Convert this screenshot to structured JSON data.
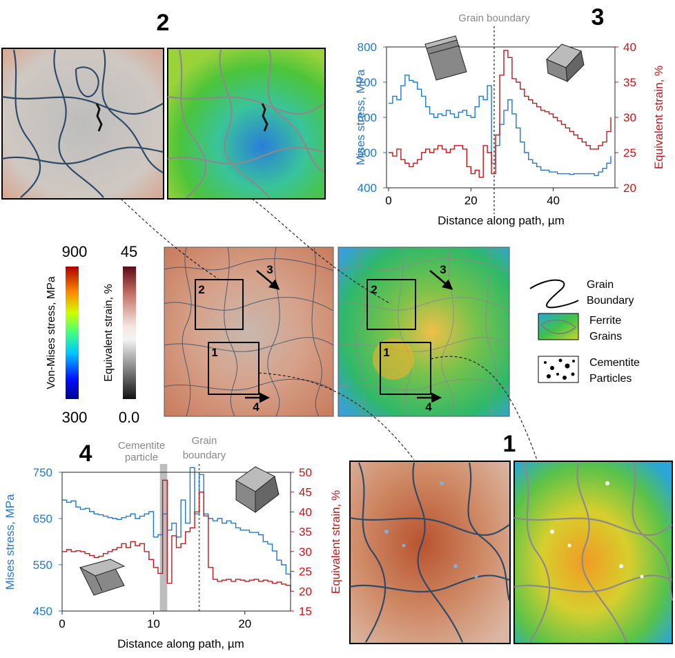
{
  "labels": {
    "panel2": "2",
    "panel3": "3",
    "panel4": "4",
    "panel1": "1",
    "arrow3": "3",
    "arrow4": "4",
    "box1": "1",
    "box2": "2"
  },
  "colorbars": {
    "stress": {
      "label": "Von-Mises stress, MPa",
      "max": "900",
      "min": "300"
    },
    "strain": {
      "label": "Equivalent strain, %",
      "max": "45",
      "min": "0.0"
    }
  },
  "legend": {
    "grain_boundary_line1": "Grain",
    "grain_boundary_line2": "Boundary",
    "ferrite_line1": "Ferrite",
    "ferrite_line2": "Grains",
    "cementite_line1": "Cementite",
    "cementite_line2": "Particles"
  },
  "colors": {
    "stress_axis": "#1f78c8",
    "strain_axis": "#c0161b",
    "annotation_gray": "#888888"
  },
  "chart_data": [
    {
      "id": "3",
      "type": "line",
      "annotation": "Grain boundary",
      "boundary_x": 25.5,
      "xlabel": "Distance along path, µm",
      "ylabel_left": "Mises stress, MPa",
      "ylabel_right": "Equivalent strain, %",
      "xlim": [
        -0.5,
        55
      ],
      "ylim_left": [
        400,
        800
      ],
      "ylim_right": [
        20,
        40
      ],
      "xticks": [
        0,
        20,
        40
      ],
      "yticks_left": [
        400,
        500,
        600,
        700,
        800
      ],
      "yticks_right": [
        20,
        25,
        30,
        35,
        40
      ],
      "series": [
        {
          "axis": "left",
          "x": [
            0,
            1,
            2,
            3,
            4,
            5,
            6,
            7,
            8,
            9,
            10,
            11,
            12,
            13,
            14,
            15,
            16,
            17,
            18,
            19,
            20,
            21,
            22,
            23,
            24,
            25,
            26,
            27,
            28,
            29,
            30,
            31,
            32,
            33,
            34,
            35,
            36,
            37,
            38,
            39,
            40,
            41,
            42,
            43,
            44,
            45,
            46,
            47,
            48,
            49,
            50,
            51,
            52,
            53,
            54
          ],
          "y": [
            640,
            660,
            650,
            690,
            720,
            705,
            700,
            680,
            660,
            630,
            610,
            600,
            610,
            605,
            620,
            610,
            600,
            615,
            620,
            605,
            600,
            630,
            660,
            650,
            690,
            470,
            520,
            580,
            620,
            650,
            610,
            570,
            530,
            500,
            480,
            470,
            460,
            450,
            450,
            445,
            445,
            440,
            440,
            440,
            438,
            440,
            440,
            440,
            440,
            440,
            435,
            445,
            455,
            470,
            490
          ]
        },
        {
          "axis": "right",
          "x": [
            0,
            1,
            2,
            3,
            4,
            5,
            6,
            7,
            8,
            9,
            10,
            11,
            12,
            13,
            14,
            15,
            16,
            17,
            18,
            19,
            20,
            21,
            22,
            23,
            24,
            25,
            26,
            27,
            28,
            29,
            30,
            31,
            32,
            33,
            34,
            35,
            36,
            37,
            38,
            39,
            40,
            41,
            42,
            43,
            44,
            45,
            46,
            47,
            48,
            49,
            50,
            51,
            52,
            53,
            54
          ],
          "y": [
            25,
            24.5,
            25.5,
            24,
            23.5,
            23,
            23.5,
            24,
            25,
            25.5,
            25,
            25.5,
            26,
            25.5,
            25,
            25.5,
            26,
            26,
            25.5,
            23,
            22,
            22.5,
            21.5,
            26,
            25,
            22,
            27.5,
            36,
            39.5,
            38.5,
            35.5,
            35,
            34,
            33,
            32.5,
            32,
            31.5,
            31,
            30.8,
            30.5,
            30,
            29.5,
            29,
            28.5,
            28,
            27.5,
            27,
            26.5,
            26,
            25.5,
            25.5,
            26,
            26.5,
            28,
            30
          ]
        }
      ]
    },
    {
      "id": "4",
      "type": "line",
      "annotation_particle": "Cementite particle",
      "annotation_boundary": "Grain boundary",
      "particle_range": [
        10.7,
        11.5
      ],
      "boundary_x": 15,
      "xlabel": "Distance along path, µm",
      "ylabel_left": "Mises stress, MPa",
      "ylabel_right": "Equivalent strain, %",
      "xlim": [
        0,
        25
      ],
      "ylim_left": [
        450,
        750
      ],
      "ylim_right": [
        15,
        50
      ],
      "xticks": [
        0,
        10,
        20
      ],
      "yticks_left": [
        450,
        550,
        650,
        750
      ],
      "yticks_right": [
        15,
        20,
        25,
        30,
        35,
        40,
        45,
        50
      ],
      "series": [
        {
          "axis": "left",
          "x": [
            0,
            0.5,
            1,
            1.5,
            2,
            2.5,
            3,
            3.5,
            4,
            4.5,
            5,
            5.5,
            6,
            6.5,
            7,
            7.5,
            8,
            8.5,
            9,
            9.5,
            10,
            10.5,
            11,
            11.5,
            12,
            12.5,
            13,
            13.5,
            14,
            14.5,
            15,
            15.5,
            16,
            16.5,
            17,
            17.5,
            18,
            18.5,
            19,
            19.5,
            20,
            20.5,
            21,
            21.5,
            22,
            22.5,
            23,
            23.5,
            24,
            24.5,
            25
          ],
          "y": [
            690,
            685,
            688,
            675,
            670,
            672,
            665,
            660,
            658,
            655,
            652,
            650,
            648,
            652,
            655,
            660,
            650,
            655,
            660,
            665,
            610,
            615,
            660,
            625,
            640,
            610,
            690,
            640,
            760,
            660,
            745,
            660,
            650,
            645,
            650,
            640,
            645,
            640,
            630,
            625,
            625,
            620,
            620,
            615,
            600,
            595,
            580,
            560,
            550,
            530,
            520
          ]
        },
        {
          "axis": "right",
          "x": [
            0,
            0.5,
            1,
            1.5,
            2,
            2.5,
            3,
            3.5,
            4,
            4.5,
            5,
            5.5,
            6,
            6.5,
            7,
            7.5,
            8,
            8.5,
            9,
            9.5,
            10,
            10.5,
            11,
            11.5,
            12,
            12.5,
            13,
            13.5,
            14,
            14.5,
            15,
            15.5,
            16,
            16.5,
            17,
            17.5,
            18,
            18.5,
            19,
            19.5,
            20,
            20.5,
            21,
            21.5,
            22,
            22.5,
            23,
            23.5,
            24,
            24.5,
            25
          ],
          "y": [
            30,
            30.5,
            30,
            30.2,
            30,
            29.5,
            29,
            28.5,
            28.8,
            29.5,
            30,
            30.5,
            31,
            32,
            31,
            32.5,
            31.5,
            32,
            30,
            28,
            26,
            24.5,
            48,
            22,
            34,
            31,
            32,
            35,
            36,
            40,
            45,
            39,
            26,
            23,
            22.5,
            22.8,
            23,
            22.5,
            23,
            22.8,
            22.5,
            22.8,
            23,
            22.5,
            22.8,
            22.5,
            22,
            22.3,
            21.8,
            21.5,
            20
          ]
        }
      ]
    }
  ]
}
